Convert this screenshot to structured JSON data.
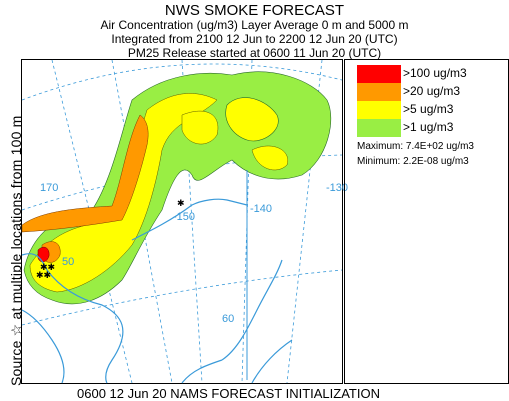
{
  "header": {
    "title": "NWS SMOKE FORECAST",
    "line1": "Air Concentration (ug/m3) Layer Average    0 m and  5000 m",
    "line2": "Integrated from 2100 12 Jun to 2200 12 Jun 20 (UTC)",
    "line3": "PM25 Release started at 0600 11 Jun 20 (UTC)"
  },
  "side_label": "Source ☆ at multiple locations from 100 m",
  "legend": {
    "items": [
      {
        "label": ">100 ug/m3",
        "color": "#ff0000"
      },
      {
        "label": ">20 ug/m3",
        "color": "#ff9900"
      },
      {
        "label": ">5 ug/m3",
        "color": "#ffff00"
      },
      {
        "label": ">1 ug/m3",
        "color": "#99ee44"
      }
    ],
    "maximum": "Maximum: 7.4E+02 ug/m3",
    "minimum": "Minimum: 2.2E-08 ug/m3"
  },
  "map": {
    "longitude_labels": [
      "170",
      "-150",
      "-140",
      "-130",
      "50",
      "60"
    ],
    "coast_color": "#3a9ad9",
    "grid_color": "#3a9ad9"
  },
  "footer": "0600 12 Jun 20 NAMS FORECAST INITIALIZATION"
}
